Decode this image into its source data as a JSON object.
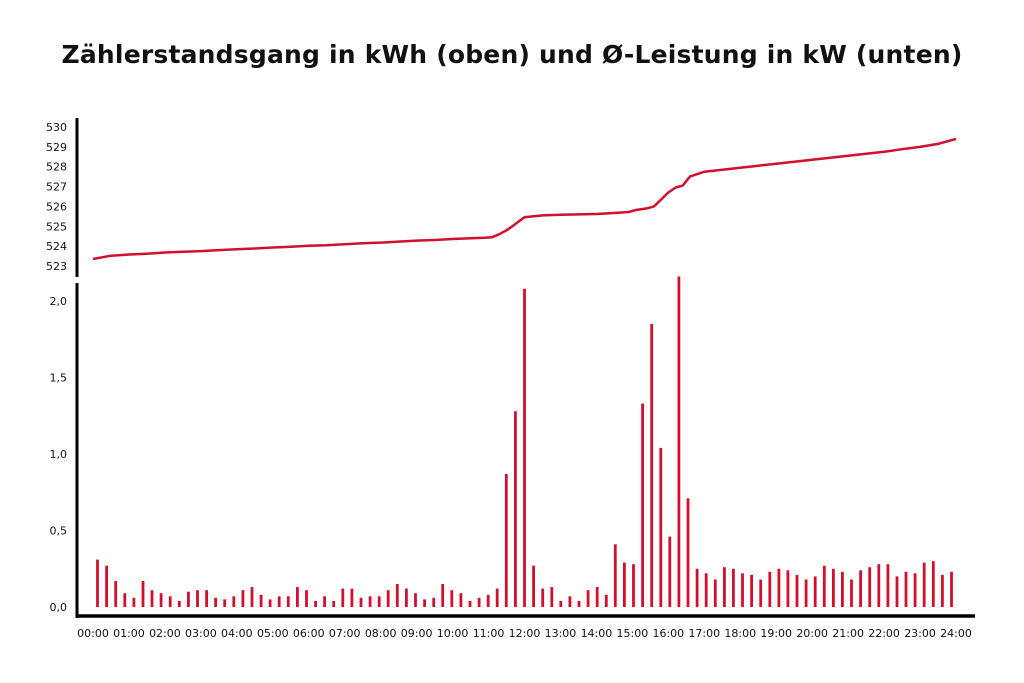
{
  "title": "Zählerstandsgang in kWh (oben) und Ø-Leistung in kW (unten)",
  "colors": {
    "series": "#d2102d",
    "axis": "#000000",
    "text": "#111111"
  },
  "chart_data": [
    {
      "type": "line",
      "ylim": [
        523,
        530
      ],
      "yticks": [
        "523",
        "524",
        "525",
        "526",
        "527",
        "528",
        "529",
        "530"
      ],
      "xlim": [
        0,
        24
      ],
      "grid": false,
      "series": [
        {
          "x": [
            0,
            0.5,
            1,
            1.5,
            2,
            2.5,
            3,
            3.5,
            4,
            4.5,
            5,
            5.5,
            6,
            6.5,
            7,
            7.5,
            8,
            8.5,
            9,
            9.5,
            10,
            10.5,
            10.9,
            11.1,
            11.3,
            11.5,
            11.7,
            12,
            12.5,
            13,
            13.5,
            14,
            14.3,
            14.6,
            14.9,
            15.1,
            15.4,
            15.6,
            15.8,
            16,
            16.2,
            16.4,
            16.6,
            17,
            17.5,
            18,
            18.5,
            19,
            19.5,
            20,
            20.5,
            21,
            21.5,
            22,
            22.5,
            23,
            23.5,
            24
          ],
          "y": [
            523.35,
            523.52,
            523.58,
            523.62,
            523.68,
            523.72,
            523.75,
            523.8,
            523.84,
            523.88,
            523.93,
            523.97,
            524.02,
            524.05,
            524.1,
            524.15,
            524.18,
            524.23,
            524.28,
            524.31,
            524.36,
            524.4,
            524.42,
            524.45,
            524.6,
            524.8,
            525.05,
            525.45,
            525.55,
            525.58,
            525.6,
            525.62,
            525.65,
            525.68,
            525.72,
            525.82,
            525.9,
            526.0,
            526.35,
            526.7,
            526.95,
            527.05,
            527.5,
            527.75,
            527.85,
            527.95,
            528.05,
            528.15,
            528.25,
            528.35,
            528.45,
            528.55,
            528.65,
            528.75,
            528.88,
            529.0,
            529.15,
            529.4
          ]
        }
      ]
    },
    {
      "type": "bar",
      "ylim": [
        0,
        2.2
      ],
      "yticks": [
        "0,0",
        "0,5",
        "1,0",
        "1,5",
        "2,0"
      ],
      "xticks": [
        "00:00",
        "01:00",
        "02:00",
        "03:00",
        "04:00",
        "05:00",
        "06:00",
        "07:00",
        "08:00",
        "09:00",
        "10:00",
        "11:00",
        "12:00",
        "13:00",
        "14:00",
        "15:00",
        "16:00",
        "17:00",
        "18:00",
        "19:00",
        "20:00",
        "21:00",
        "22:00",
        "23:00",
        "24:00"
      ],
      "xlim": [
        0,
        24
      ],
      "grid": false,
      "series": [
        {
          "values": [
            0.31,
            0.27,
            0.17,
            0.09,
            0.06,
            0.17,
            0.11,
            0.09,
            0.07,
            0.04,
            0.1,
            0.11,
            0.11,
            0.06,
            0.05,
            0.07,
            0.11,
            0.13,
            0.08,
            0.05,
            0.07,
            0.07,
            0.13,
            0.11,
            0.04,
            0.07,
            0.04,
            0.12,
            0.12,
            0.06,
            0.07,
            0.07,
            0.11,
            0.15,
            0.12,
            0.09,
            0.05,
            0.06,
            0.15,
            0.11,
            0.09,
            0.04,
            0.06,
            0.08,
            0.12,
            0.87,
            1.28,
            2.08,
            0.27,
            0.12,
            0.13,
            0.04,
            0.07,
            0.04,
            0.11,
            0.13,
            0.08,
            0.41,
            0.29,
            0.28,
            1.33,
            1.85,
            1.04,
            0.46,
            2.16,
            0.71,
            0.25,
            0.22,
            0.18,
            0.26,
            0.25,
            0.22,
            0.21,
            0.18,
            0.23,
            0.25,
            0.24,
            0.21,
            0.18,
            0.2,
            0.27,
            0.25,
            0.23,
            0.18,
            0.24,
            0.26,
            0.28,
            0.28,
            0.2,
            0.23,
            0.22,
            0.29,
            0.3,
            0.21,
            0.23
          ]
        }
      ]
    }
  ]
}
